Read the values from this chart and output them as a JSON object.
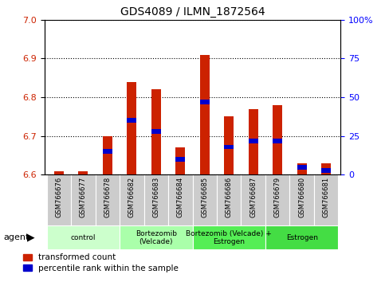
{
  "title": "GDS4089 / ILMN_1872564",
  "samples": [
    "GSM766676",
    "GSM766677",
    "GSM766678",
    "GSM766682",
    "GSM766683",
    "GSM766684",
    "GSM766685",
    "GSM766686",
    "GSM766687",
    "GSM766679",
    "GSM766680",
    "GSM766681"
  ],
  "transformed_count": [
    6.61,
    6.61,
    6.7,
    6.84,
    6.82,
    6.67,
    6.91,
    6.75,
    6.77,
    6.78,
    6.63,
    6.63
  ],
  "percentile_rank": [
    5,
    3,
    15,
    35,
    28,
    10,
    47,
    18,
    22,
    22,
    5,
    3
  ],
  "ylim_left": [
    6.6,
    7.0
  ],
  "ylim_right": [
    0,
    100
  ],
  "yticks_left": [
    6.6,
    6.7,
    6.8,
    6.9,
    7.0
  ],
  "yticks_right": [
    0,
    25,
    50,
    75,
    100
  ],
  "ytick_labels_right": [
    "0",
    "25",
    "50",
    "75",
    "100%"
  ],
  "groups": [
    {
      "label": "control",
      "start": 0,
      "end": 3,
      "color": "#ccffcc"
    },
    {
      "label": "Bortezomib\n(Velcade)",
      "start": 3,
      "end": 6,
      "color": "#aaffaa"
    },
    {
      "label": "Bortezomib (Velcade) +\nEstrogen",
      "start": 6,
      "end": 9,
      "color": "#55ee55"
    },
    {
      "label": "Estrogen",
      "start": 9,
      "end": 12,
      "color": "#44dd44"
    }
  ],
  "bar_width": 0.4,
  "red_color": "#cc2200",
  "blue_color": "#0000cc",
  "legend_red": "transformed count",
  "legend_blue": "percentile rank within the sample",
  "agent_label": "agent",
  "base_value": 6.6
}
